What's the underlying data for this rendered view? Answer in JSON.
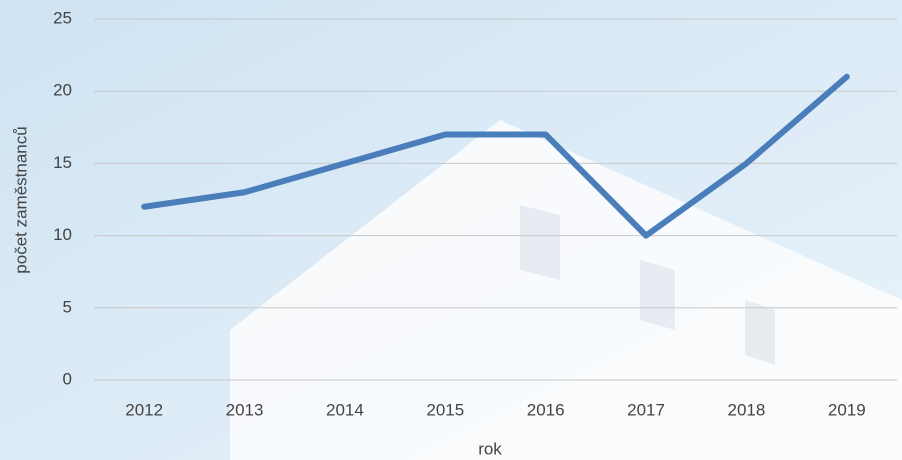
{
  "chart_data": {
    "type": "line",
    "x_label": "rok",
    "y_label": "počet zaměstnanců",
    "categories": [
      "2012",
      "2013",
      "2014",
      "2015",
      "2016",
      "2017",
      "2018",
      "2019"
    ],
    "series": [
      {
        "name": "počet zaměstnanců",
        "color": "#4a7ebb",
        "values": [
          12,
          13,
          15,
          17,
          17,
          10,
          15,
          21
        ]
      }
    ],
    "ylim": [
      0,
      25
    ],
    "yticks": [
      0,
      5,
      10,
      15,
      20,
      25
    ],
    "grid": true
  }
}
